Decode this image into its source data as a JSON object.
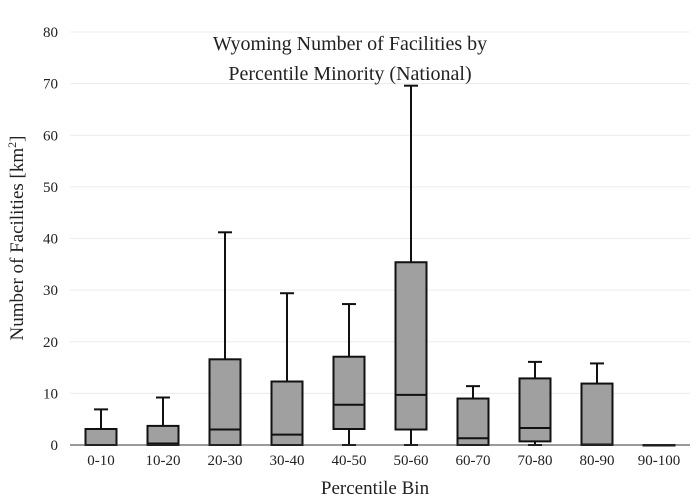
{
  "chart_data": {
    "type": "box",
    "title_lines": [
      "Wyoming Number of Facilities by",
      "Percentile Minority (National)"
    ],
    "xlabel": "Percentile Bin",
    "ylabel": "Number of Facilities  [km",
    "ylabel_sup": "2",
    "ylabel_close": "]",
    "ylim": [
      0,
      80
    ],
    "yticks": [
      0,
      10,
      20,
      30,
      40,
      50,
      60,
      70,
      80
    ],
    "grid": true,
    "box_color": "#a0a0a0",
    "categories": [
      "0-10",
      "10-20",
      "20-30",
      "30-40",
      "40-50",
      "50-60",
      "60-70",
      "70-80",
      "80-90",
      "90-100"
    ],
    "boxes": [
      {
        "min": 0,
        "q1": 0,
        "median": 0,
        "q3": 3.1,
        "max": 6.9
      },
      {
        "min": 0,
        "q1": 0,
        "median": 0.3,
        "q3": 3.7,
        "max": 9.2
      },
      {
        "min": 0,
        "q1": 0,
        "median": 3.0,
        "q3": 16.6,
        "max": 41.2
      },
      {
        "min": 0,
        "q1": 0,
        "median": 2.0,
        "q3": 12.3,
        "max": 29.4
      },
      {
        "min": 0,
        "q1": 3.1,
        "median": 7.8,
        "q3": 17.1,
        "max": 27.3
      },
      {
        "min": 0,
        "q1": 3.0,
        "median": 9.7,
        "q3": 35.4,
        "max": 69.6
      },
      {
        "min": 0,
        "q1": 0,
        "median": 1.3,
        "q3": 9.0,
        "max": 11.4
      },
      {
        "min": 0,
        "q1": 0.7,
        "median": 3.3,
        "q3": 12.9,
        "max": 16.1
      },
      {
        "min": 0,
        "q1": 0,
        "median": 0.1,
        "q3": 11.9,
        "max": 15.8
      },
      {
        "min": 0,
        "q1": 0,
        "median": 0,
        "q3": 0,
        "max": 0
      }
    ]
  }
}
